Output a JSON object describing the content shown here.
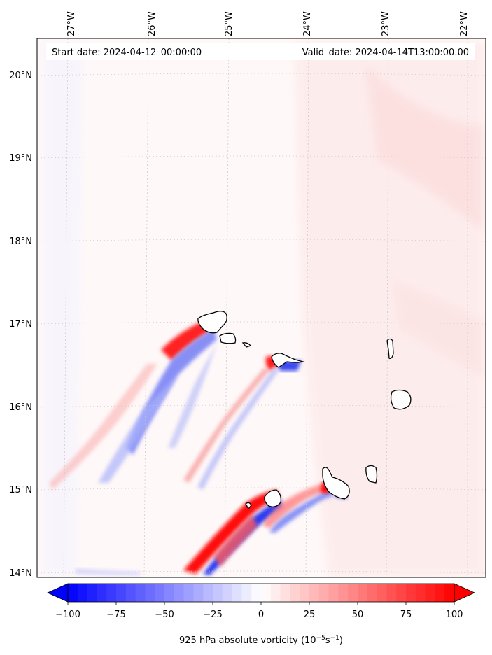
{
  "header": {
    "start_date": "Start date: 2024-04-12_00:00:00",
    "valid_date": "Valid_date: 2024-04-14T13:00:00.00"
  },
  "axes": {
    "lon_ticks": [
      "27°W",
      "26°W",
      "25°W",
      "24°W",
      "23°W",
      "22°W"
    ],
    "lat_ticks": [
      "20°N",
      "19°N",
      "18°N",
      "17°N",
      "16°N",
      "15°N",
      "14°N"
    ]
  },
  "colorbar": {
    "ticks": [
      "−100",
      "−75",
      "−50",
      "−25",
      "0",
      "25",
      "50",
      "75",
      "100"
    ],
    "range": [
      -100,
      100
    ],
    "title_main": "925 hPa absolute vorticity (10",
    "title_exp1": "−5",
    "title_mid": "s",
    "title_exp2": "−1",
    "title_end": ")",
    "colors": {
      "min": "#0000ff",
      "zero": "#ffffff",
      "max": "#ff0000"
    }
  }
}
